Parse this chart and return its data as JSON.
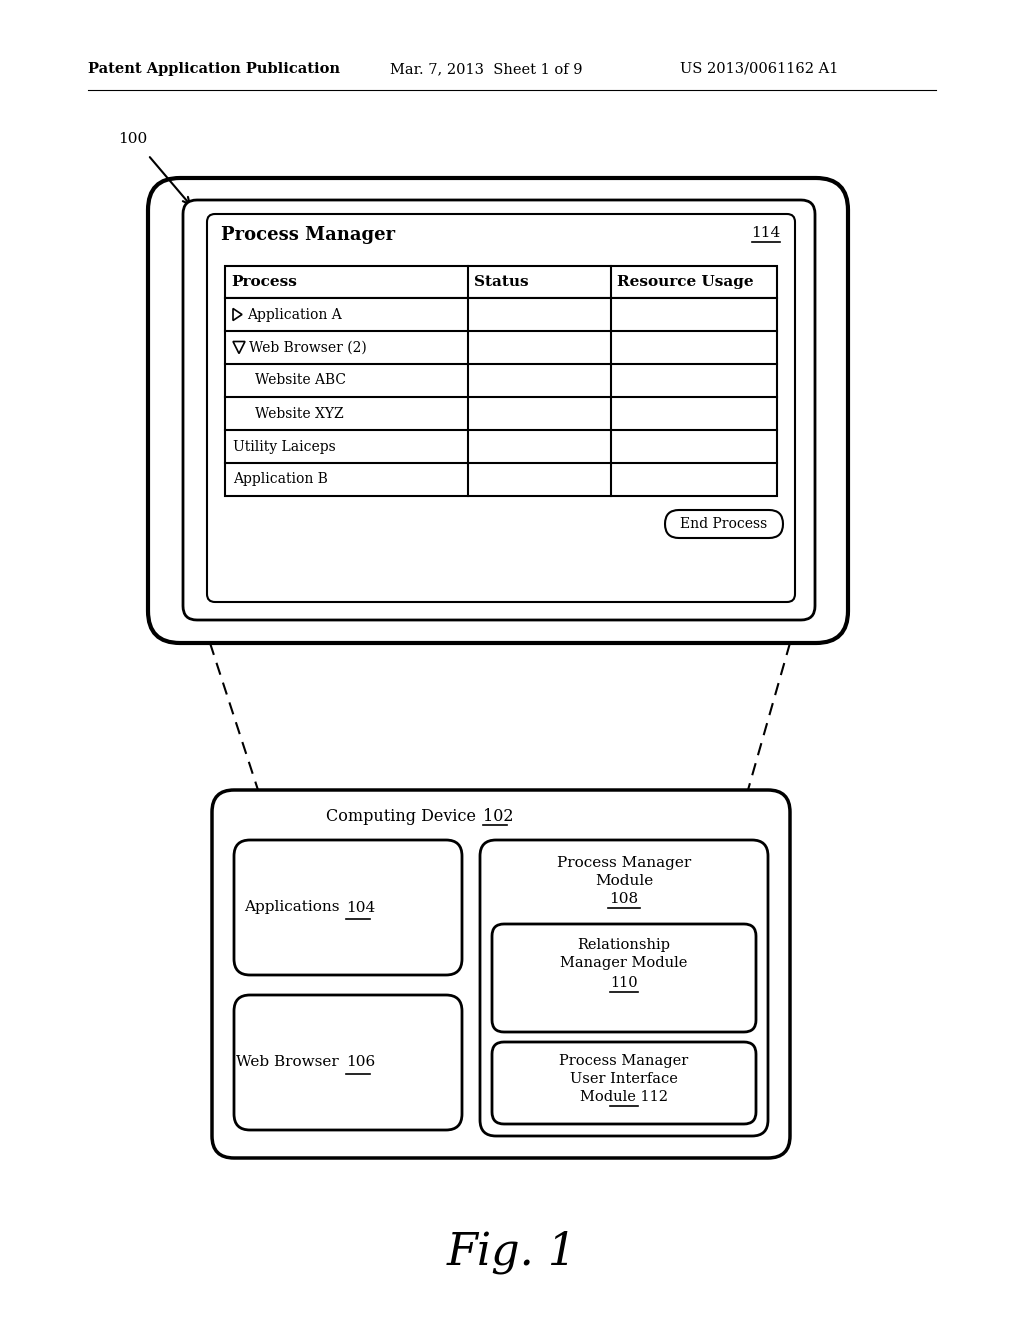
{
  "bg_color": "#ffffff",
  "header_text": "Patent Application Publication",
  "header_date": "Mar. 7, 2013  Sheet 1 of 9",
  "header_patent": "US 2013/0061162 A1",
  "label_100": "100",
  "fig_label": "Fig. 1",
  "monitor_label": "114",
  "pm_title": "Process Manager",
  "table_headers": [
    "Process",
    "Status",
    "Resource Usage"
  ],
  "table_rows": [
    {
      "indent": 0,
      "icon": "right_triangle",
      "text": "Application A"
    },
    {
      "indent": 0,
      "icon": "down_triangle",
      "text": "Web Browser (2)"
    },
    {
      "indent": 1,
      "icon": "",
      "text": "Website ABC"
    },
    {
      "indent": 1,
      "icon": "",
      "text": "Website XYZ"
    },
    {
      "indent": 0,
      "icon": "",
      "text": "Utility Laiceps"
    },
    {
      "indent": 0,
      "icon": "",
      "text": "Application B"
    }
  ],
  "end_button_text": "End Process",
  "computing_device_label": "Computing Device",
  "cd_label_num": "102",
  "box_apps_text": "Applications",
  "box_apps_num": "104",
  "box_wb_text": "Web Browser",
  "box_wb_num": "106",
  "box_pmm_line1": "Process Manager",
  "box_pmm_line2": "Module",
  "box_pmm_num": "108",
  "box_rmm_line1": "Relationship",
  "box_rmm_line2": "Manager Module",
  "box_rmm_num": "110",
  "box_pmui_line1": "Process Manager",
  "box_pmui_line2": "User Interface",
  "box_pmui_line3": "Module",
  "box_pmui_num": "112"
}
